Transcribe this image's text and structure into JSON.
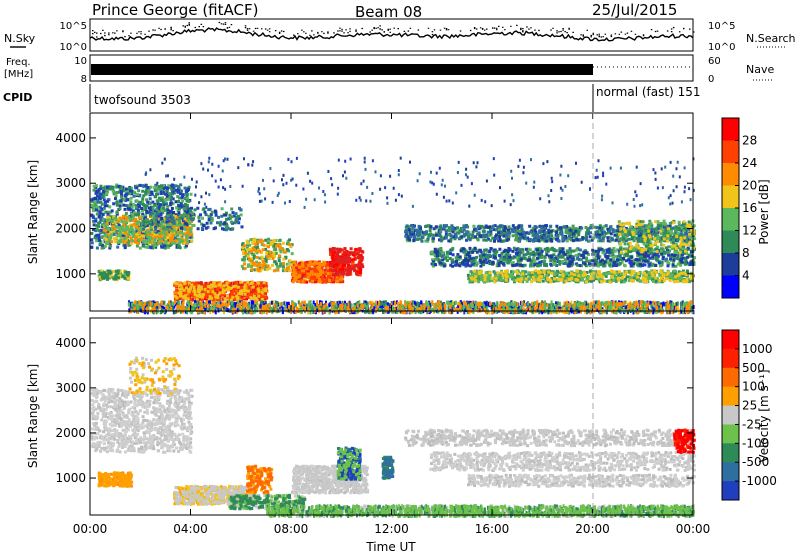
{
  "header": {
    "station": "Prince George (fitACF)",
    "beam": "Beam 08",
    "date": "25/Jul/2015"
  },
  "side_labels": {
    "nsky": "N.Sky",
    "nsearch": "N.Search",
    "freq_line1": "Freq.",
    "freq_line2": "[MHz]",
    "nave": "Nave",
    "cpid": "CPID"
  },
  "small_axes": {
    "noise_left_top": "10^5",
    "noise_left_bottom": "10^0",
    "noise_right_top": "10^5",
    "noise_right_bottom": "10^0",
    "freq_left_top": "10",
    "freq_left_bottom": "8",
    "nave_right_top": "60",
    "nave_right_bottom": "0"
  },
  "cpid": {
    "left_program": "twofsound 3503",
    "right_program": "normal (fast) 151",
    "switch_time": "20:00"
  },
  "chart_data": [
    {
      "type": "heatmap",
      "title": "Power",
      "xlabel": "",
      "ylabel": "Slant Range [km]",
      "x_range_hours": [
        0,
        24
      ],
      "ylim": [
        180,
        4550
      ],
      "y_ticks": [
        "1000",
        "2000",
        "3000",
        "4000"
      ],
      "colorbar_label": "Power [dB]",
      "colorbar_ticks": [
        "4",
        "8",
        "12",
        "16",
        "20",
        "24",
        "28"
      ],
      "colorbar_colors": [
        "#0000ff",
        "#1d3d9a",
        "#2e8b57",
        "#5cb85c",
        "#f0c419",
        "#ff8c00",
        "#ff4000",
        "#ff0000"
      ]
    },
    {
      "type": "heatmap",
      "title": "Velocity",
      "xlabel": "Time UT",
      "ylabel": "Slant Range [km]",
      "x_range_hours": [
        0,
        24
      ],
      "ylim": [
        180,
        4550
      ],
      "y_ticks": [
        "1000",
        "2000",
        "3000",
        "4000"
      ],
      "x_ticks": [
        "00:00",
        "04:00",
        "08:00",
        "12:00",
        "16:00",
        "20:00",
        "00:00"
      ],
      "colorbar_label": "Velocity [m s⁻¹]",
      "colorbar_ticks": [
        "1000",
        "500",
        "100",
        "25",
        "-25",
        "-100",
        "-500",
        "-1000"
      ],
      "colorbar_colors": [
        "#1f3fbf",
        "#2e6fa0",
        "#2e8b57",
        "#6cc24a",
        "#c8c8c8",
        "#ffa000",
        "#ff6a00",
        "#ff2000",
        "#ff0000"
      ]
    }
  ]
}
